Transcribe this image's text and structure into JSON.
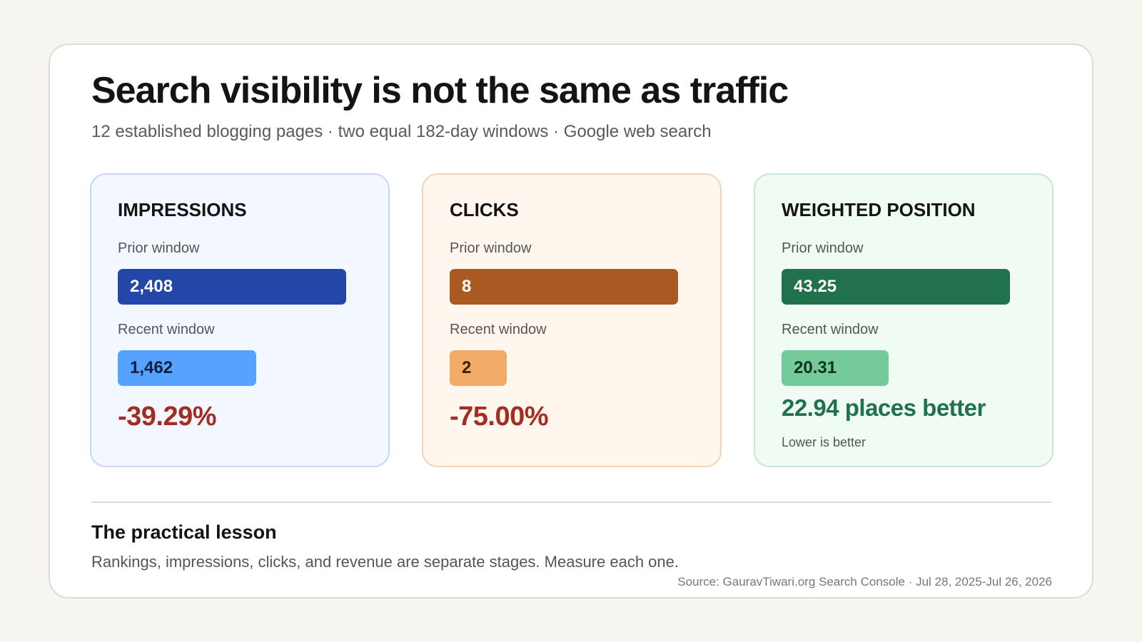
{
  "header": {
    "title": "Search visibility is not the same as traffic",
    "subtitle": "12 established blogging pages · two equal 182-day windows · Google web search"
  },
  "chart_data": [
    {
      "type": "bar",
      "title": "IMPRESSIONS",
      "categories": [
        "Prior window",
        "Recent window"
      ],
      "values": [
        2408,
        1462
      ],
      "value_labels": [
        "2,408",
        "1,462"
      ],
      "change_label": "-39.29%",
      "note": "",
      "colors": [
        "#2346a8",
        "#56a2ff"
      ],
      "label_colors": [
        "#ffffff",
        "#10203f"
      ],
      "panel": {
        "background": "#f3f7ff",
        "border": "#c9d6f7"
      },
      "change_color": "#a32d22"
    },
    {
      "type": "bar",
      "title": "CLICKS",
      "categories": [
        "Prior window",
        "Recent window"
      ],
      "values": [
        8,
        2
      ],
      "value_labels": [
        "8",
        "2"
      ],
      "change_label": "-75.00%",
      "note": "",
      "colors": [
        "#a85a22",
        "#f3ab69"
      ],
      "label_colors": [
        "#ffffff",
        "#3a1f06"
      ],
      "panel": {
        "background": "#fff7ee",
        "border": "#f4d2b3"
      },
      "change_color": "#a32d22"
    },
    {
      "type": "bar",
      "title": "WEIGHTED POSITION",
      "categories": [
        "Prior window",
        "Recent window"
      ],
      "values": [
        43.25,
        20.31
      ],
      "value_labels": [
        "43.25",
        "20.31"
      ],
      "change_label": "22.94 places better",
      "note": "Lower is better",
      "colors": [
        "#20714c",
        "#74ca98"
      ],
      "label_colors": [
        "#ffffff",
        "#0f3320"
      ],
      "panel": {
        "background": "#f0fbf4",
        "border": "#c5e8d2"
      },
      "change_color": "#20714c"
    }
  ],
  "lesson": {
    "title": "The practical lesson",
    "text": "Rankings, impressions, clicks, and revenue are separate stages. Measure each one."
  },
  "source": "Source: GauravTiwari.org Search Console · Jul 28, 2025-Jul 26, 2026"
}
